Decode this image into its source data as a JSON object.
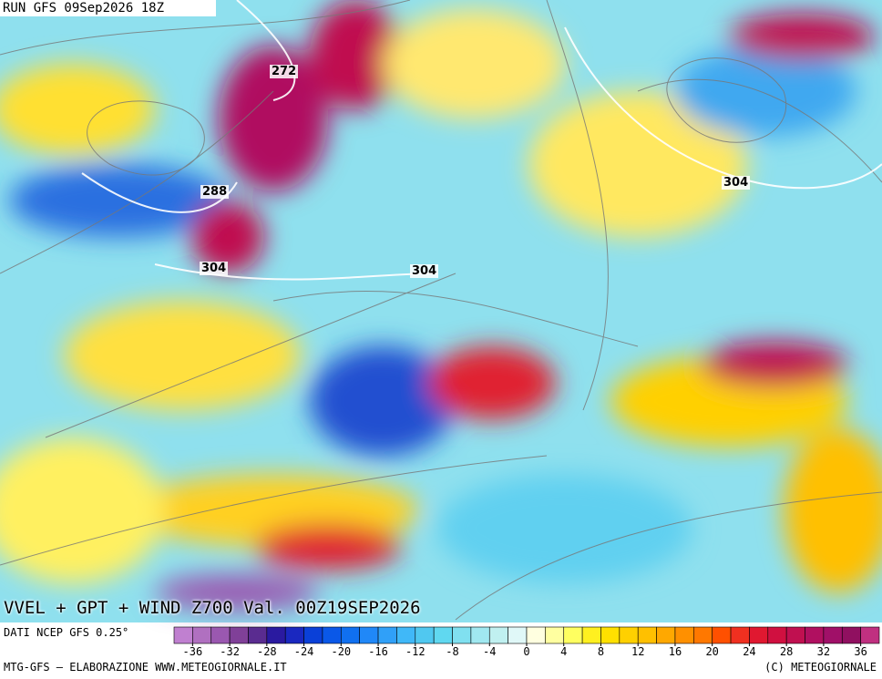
{
  "header": {
    "run": "RUN GFS 09Sep2026 18Z"
  },
  "map": {
    "title": "VVEL + GPT + WIND Z700 Val. 00Z19SEP2026",
    "contour_labels": [
      "272",
      "288",
      "304",
      "304",
      "304"
    ]
  },
  "footer": {
    "source": "DATI NCEP GFS 0.25°",
    "credit": "MTG-GFS – ELABORAZIONE WWW.METEOGIORNALE.IT",
    "copyright": "(C) METEOGIORNALE"
  },
  "colorbar": {
    "lim": [
      -38,
      38
    ],
    "ticks": [
      -36,
      -32,
      -28,
      -24,
      -20,
      -16,
      -12,
      -8,
      -4,
      0,
      4,
      8,
      12,
      16,
      20,
      24,
      28,
      32,
      36
    ],
    "colors": [
      "#c080d0",
      "#b070c0",
      "#9a58b0",
      "#804098",
      "#5a2c90",
      "#2a1aa0",
      "#1a28c0",
      "#0a40d8",
      "#0a58e8",
      "#1070f0",
      "#2088f8",
      "#30a0f8",
      "#40b8f8",
      "#50c8f0",
      "#60d8f0",
      "#80e0f0",
      "#a0e8f0",
      "#c0f0f0",
      "#e0f8f8",
      "#ffffe0",
      "#ffffa0",
      "#ffff60",
      "#fff020",
      "#ffe000",
      "#ffd000",
      "#ffc000",
      "#ffa800",
      "#ff9000",
      "#ff7800",
      "#ff5000",
      "#f03020",
      "#e01830",
      "#d01040",
      "#c01050",
      "#b01060",
      "#a01068",
      "#901060",
      "#c03080"
    ]
  }
}
